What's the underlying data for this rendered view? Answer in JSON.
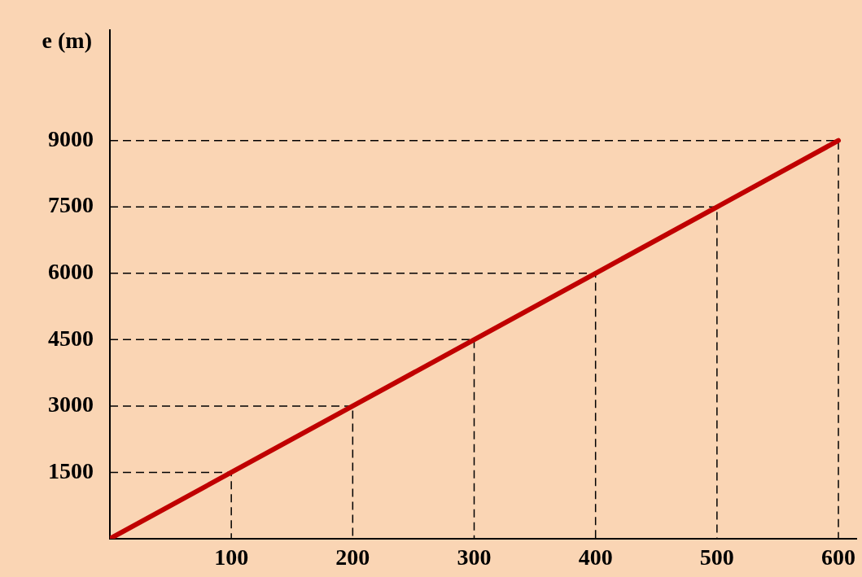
{
  "chart_data": {
    "type": "line",
    "ylabel": "e (m)",
    "x": [
      0,
      100,
      200,
      300,
      400,
      500,
      600
    ],
    "series": [
      {
        "color": "#c00000",
        "values": [
          0,
          1500,
          3000,
          4500,
          6000,
          7500,
          9000
        ]
      },
      {
        "x": [
          0,
          100,
          100
        ],
        "values": [
          1500,
          1500,
          0
        ],
        "color": "#000000",
        "line_style": "dashed"
      },
      {
        "x": [
          0,
          200,
          200
        ],
        "values": [
          3000,
          3000,
          0
        ],
        "color": "#000000",
        "line_style": "dashed"
      },
      {
        "x": [
          0,
          300,
          300
        ],
        "values": [
          4500,
          4500,
          0
        ],
        "color": "#000000",
        "line_style": "dashed"
      },
      {
        "x": [
          0,
          400,
          400
        ],
        "values": [
          6000,
          6000,
          0
        ],
        "color": "#000000",
        "line_style": "dashed"
      },
      {
        "x": [
          0,
          500,
          500
        ],
        "values": [
          7500,
          7500,
          0
        ],
        "color": "#000000",
        "line_style": "dashed"
      },
      {
        "x": [
          0,
          600,
          600
        ],
        "values": [
          9000,
          9000,
          0
        ],
        "color": "#000000",
        "line_style": "dashed"
      }
    ],
    "xlim": [
      0,
      615
    ],
    "xticks": [
      100,
      200,
      300,
      400,
      500,
      600
    ],
    "ylim": [
      0,
      11500
    ],
    "yticks": [
      1500,
      3000,
      4500,
      6000,
      7500,
      9000
    ],
    "grid": false,
    "legend": false,
    "marker": "none",
    "line_style": "solid"
  }
}
